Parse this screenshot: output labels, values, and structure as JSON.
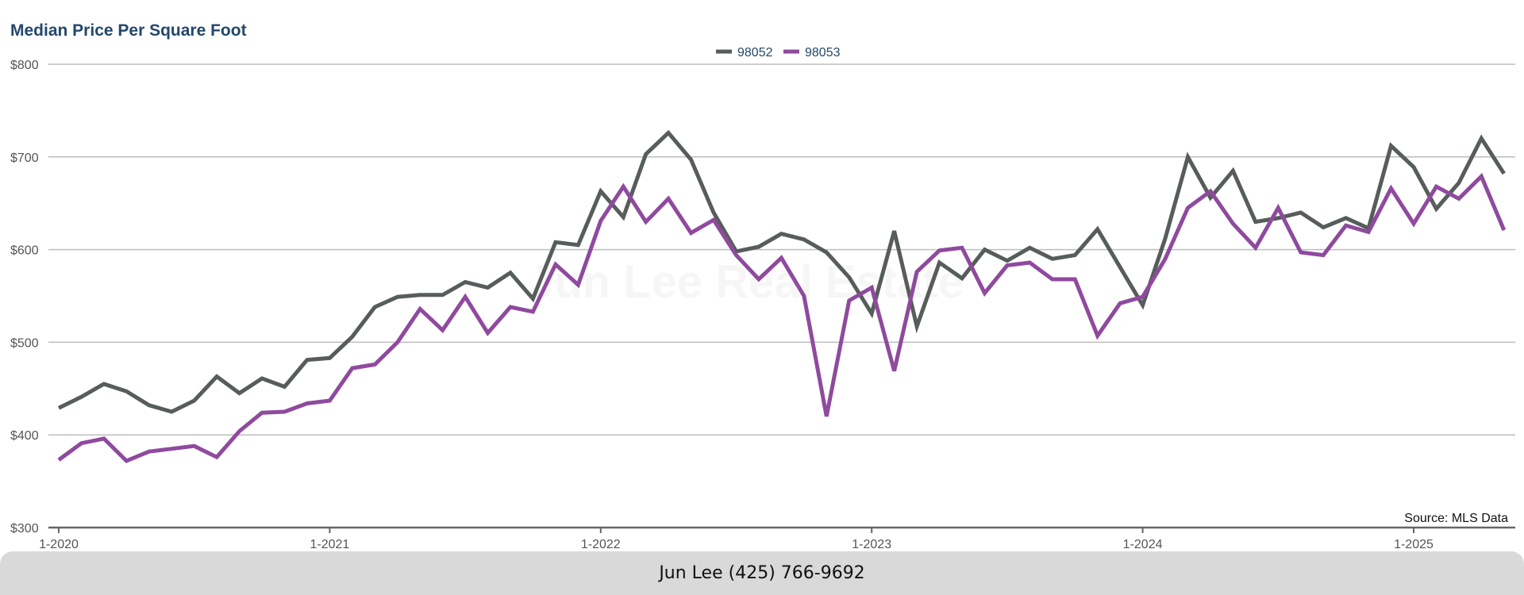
{
  "chart_data": {
    "type": "line",
    "title": "Median Price Per Square Foot",
    "y_tick_labels": [
      "$300",
      "$400",
      "$500",
      "$600",
      "$700",
      "$800"
    ],
    "y_ticks": [
      300,
      400,
      500,
      600,
      700,
      800
    ],
    "ylim": [
      300,
      800
    ],
    "x_tick_labels": [
      "1-2020",
      "1-2021",
      "1-2022",
      "1-2023",
      "1-2024",
      "1-2025"
    ],
    "x_ticks": [
      "2020-01",
      "2021-01",
      "2022-01",
      "2023-01",
      "2024-01",
      "2025-01"
    ],
    "xlim": [
      "2020-01",
      "2025-05"
    ],
    "x": [
      "2020-01",
      "2020-02",
      "2020-03",
      "2020-04",
      "2020-05",
      "2020-06",
      "2020-07",
      "2020-08",
      "2020-09",
      "2020-10",
      "2020-11",
      "2020-12",
      "2021-01",
      "2021-02",
      "2021-03",
      "2021-04",
      "2021-05",
      "2021-06",
      "2021-07",
      "2021-08",
      "2021-09",
      "2021-10",
      "2021-11",
      "2021-12",
      "2022-01",
      "2022-02",
      "2022-03",
      "2022-04",
      "2022-05",
      "2022-06",
      "2022-07",
      "2022-08",
      "2022-09",
      "2022-10",
      "2022-11",
      "2022-12",
      "2023-01",
      "2023-02",
      "2023-03",
      "2023-04",
      "2023-05",
      "2023-06",
      "2023-07",
      "2023-08",
      "2023-09",
      "2023-10",
      "2023-11",
      "2023-12",
      "2024-01",
      "2024-02",
      "2024-03",
      "2024-04",
      "2024-05",
      "2024-06",
      "2024-07",
      "2024-08",
      "2024-09",
      "2024-10",
      "2024-11",
      "2024-12",
      "2025-01",
      "2025-02",
      "2025-03",
      "2025-04",
      "2025-05"
    ],
    "series": [
      {
        "name": "98052",
        "color": "#565d5a",
        "values": [
          429,
          441,
          455,
          447,
          432,
          425,
          437,
          463,
          445,
          461,
          452,
          481,
          483,
          506,
          538,
          549,
          551,
          551,
          565,
          559,
          575,
          547,
          608,
          605,
          663,
          635,
          703,
          726,
          697,
          640,
          598,
          603,
          617,
          611,
          597,
          570,
          531,
          620,
          517,
          586,
          569,
          600,
          588,
          602,
          590,
          594,
          622,
          581,
          540,
          612,
          700,
          656,
          685,
          630,
          634,
          640,
          624,
          634,
          623,
          712,
          689,
          644,
          672,
          720,
          682
        ]
      },
      {
        "name": "98053",
        "color": "#8f4a9e",
        "values": [
          373,
          391,
          396,
          372,
          382,
          385,
          388,
          376,
          404,
          424,
          425,
          434,
          437,
          472,
          476,
          500,
          536,
          513,
          549,
          510,
          538,
          533,
          584,
          562,
          631,
          668,
          630,
          655,
          618,
          632,
          594,
          568,
          591,
          550,
          420,
          545,
          559,
          469,
          576,
          599,
          602,
          553,
          583,
          586,
          568,
          568,
          507,
          542,
          549,
          590,
          645,
          663,
          628,
          602,
          645,
          597,
          594,
          626,
          619,
          666,
          628,
          668,
          655,
          679,
          621
        ]
      }
    ],
    "legend_position": "top-center",
    "grid": true
  },
  "watermark_text": "Jun Lee Real Estate",
  "source_text": "Source: MLS Data",
  "footer": {
    "contact": "Jun Lee (425) 766-9692"
  }
}
